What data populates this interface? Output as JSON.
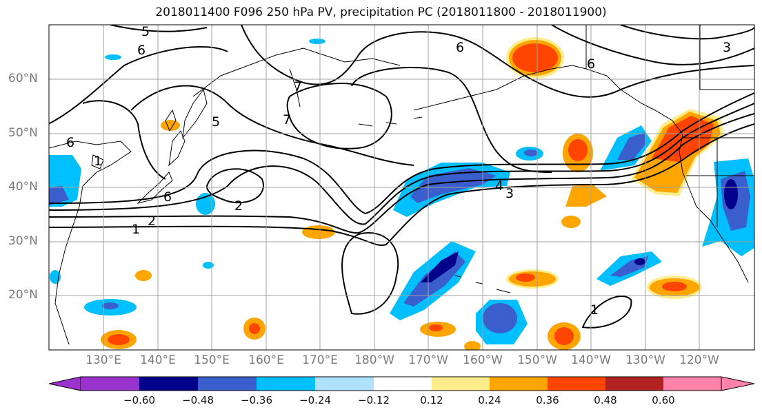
{
  "title": "2018011400 F096 250 hPa PV, precipitation PC (2018011800 - 2018011900)",
  "lat_labels": [
    "60°N",
    "50°N",
    "40°N",
    "30°N",
    "20°N"
  ],
  "lon_labels": [
    "130°E",
    "140°E",
    "150°E",
    "160°E",
    "170°E",
    "180°W",
    "170°W",
    "160°W",
    "150°W",
    "140°W",
    "130°W",
    "120°W"
  ],
  "contour_labels": [
    "5",
    "6",
    "6",
    "7",
    "7",
    "5",
    "6",
    "1",
    "6",
    "2",
    "2",
    "1",
    "4",
    "3",
    "6",
    "3",
    "1"
  ],
  "colorbar": {
    "ticks": [
      "−0.60",
      "−0.48",
      "−0.36",
      "−0.24",
      "−0.12",
      "0.12",
      "0.24",
      "0.36",
      "0.48",
      "0.60"
    ],
    "colors": [
      "#9a32cd",
      "#00008b",
      "#3a5fcd",
      "#00bfff",
      "#b0e2ff",
      "#ffffff",
      "#ffec8b",
      "#ffa500",
      "#ff4500",
      "#b22222",
      "#ff82ab"
    ]
  },
  "palette": {
    "dark_blue": "#00008b",
    "mid_blue": "#3a5fcd",
    "light_blue": "#00bfff",
    "pale_blue": "#b0e2ff",
    "pale_yellow": "#ffec8b",
    "orange": "#ffa500",
    "red_orange": "#ff4500",
    "contour": "#000000",
    "grid": "#a0a0a0"
  }
}
